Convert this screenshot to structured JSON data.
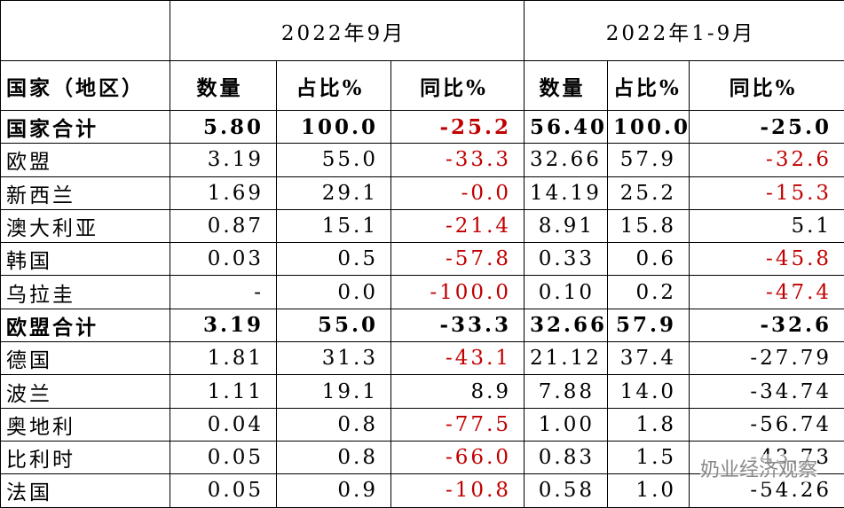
{
  "table": {
    "group_header": [
      "2022年9月",
      "2022年1-9月"
    ],
    "header": [
      "国家（地区）",
      "数量",
      "占比%",
      "同比%",
      "数量",
      "占比%",
      "同比%"
    ],
    "rows": [
      {
        "bold": true,
        "cells": [
          "国家合计",
          "5.80",
          "100.0",
          {
            "text": "-25.2",
            "color": "#c00000"
          },
          "56.40",
          "100.0",
          "-25.0"
        ]
      },
      {
        "cells": [
          "欧盟",
          "3.19",
          "55.0",
          {
            "text": "-33.3",
            "color": "#c00000"
          },
          "32.66",
          "57.9",
          {
            "text": "-32.6",
            "color": "#c00000"
          }
        ]
      },
      {
        "cells": [
          "新西兰",
          "1.69",
          "29.1",
          {
            "text": "-0.0",
            "color": "#c00000"
          },
          "14.19",
          "25.2",
          {
            "text": "-15.3",
            "color": "#c00000"
          }
        ]
      },
      {
        "cells": [
          "澳大利亚",
          "0.87",
          "15.1",
          {
            "text": "-21.4",
            "color": "#c00000"
          },
          "8.91",
          "15.8",
          "5.1"
        ]
      },
      {
        "cells": [
          "韩国",
          "0.03",
          "0.5",
          {
            "text": "-57.8",
            "color": "#c00000"
          },
          "0.33",
          "0.6",
          {
            "text": "-45.8",
            "color": "#c00000"
          }
        ]
      },
      {
        "cells": [
          "乌拉圭",
          "-",
          "0.0",
          {
            "text": "-100.0",
            "color": "#c00000"
          },
          "0.10",
          "0.2",
          {
            "text": "-47.4",
            "color": "#c00000"
          }
        ]
      },
      {
        "bold": true,
        "cells": [
          "欧盟合计",
          "3.19",
          "55.0",
          "-33.3",
          "32.66",
          "57.9",
          "-32.6"
        ]
      },
      {
        "cells": [
          "德国",
          "1.81",
          "31.3",
          {
            "text": "-43.1",
            "color": "#c00000"
          },
          "21.12",
          "37.4",
          "-27.79"
        ]
      },
      {
        "cells": [
          "波兰",
          "1.11",
          "19.1",
          "8.9",
          "7.88",
          "14.0",
          "-34.74"
        ]
      },
      {
        "cells": [
          "奥地利",
          "0.04",
          "0.8",
          {
            "text": "-77.5",
            "color": "#c00000"
          },
          "1.00",
          "1.8",
          "-56.74"
        ]
      },
      {
        "cells": [
          "比利时",
          "0.05",
          "0.8",
          {
            "text": "-66.0",
            "color": "#c00000"
          },
          "0.83",
          "1.5",
          "-43.73"
        ]
      },
      {
        "cells": [
          "法国",
          "0.05",
          "0.9",
          {
            "text": "-10.8",
            "color": "#c00000"
          },
          "0.58",
          "1.0",
          "-54.26"
        ]
      }
    ]
  },
  "watermark": "奶业经济观察"
}
